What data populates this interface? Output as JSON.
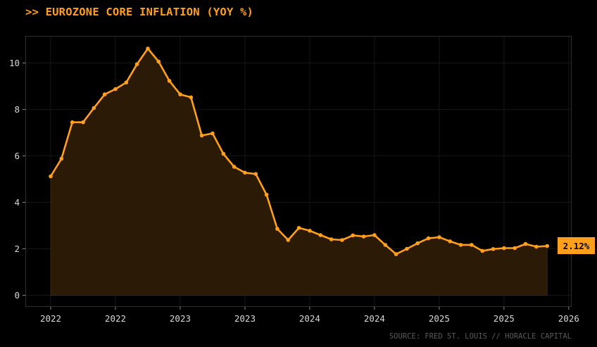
{
  "title": ">> EUROZONE CORE INFLATION (YOY %)",
  "source": "SOURCE: FRED ST. LOUIS // HORACLE CAPITAL",
  "last_value_label": "2.12%",
  "colors": {
    "accent": "#ff9f1c",
    "background": "#000000",
    "fill": "#2a1a06",
    "grid": "#161616",
    "axis_text": "#d8d8d8"
  },
  "chart_data": {
    "type": "area",
    "title": ">> EUROZONE CORE INFLATION (YOY %)",
    "xlabel": "",
    "ylabel": "",
    "x_tick_labels": [
      "2022",
      "2022",
      "2023",
      "2023",
      "2024",
      "2024",
      "2025",
      "2025",
      "2026"
    ],
    "y_ticks": [
      0,
      2,
      4,
      6,
      8,
      10
    ],
    "xlim": [
      0,
      48.6
    ],
    "ylim": [
      -0.5,
      11.1
    ],
    "grid": true,
    "legend": "none",
    "series": [
      {
        "values": [
          5.12,
          5.88,
          7.45,
          7.45,
          8.06,
          8.65,
          8.88,
          9.16,
          9.95,
          10.62,
          10.06,
          9.23,
          8.65,
          8.52,
          6.88,
          6.97,
          6.09,
          5.53,
          5.28,
          5.22,
          4.33,
          2.86,
          2.38,
          2.9,
          2.78,
          2.59,
          2.41,
          2.38,
          2.58,
          2.53,
          2.59,
          2.17,
          1.77,
          2.0,
          2.24,
          2.45,
          2.5,
          2.32,
          2.17,
          2.17,
          1.91,
          1.99,
          2.03,
          2.03,
          2.21,
          2.09,
          2.12
        ]
      }
    ]
  }
}
